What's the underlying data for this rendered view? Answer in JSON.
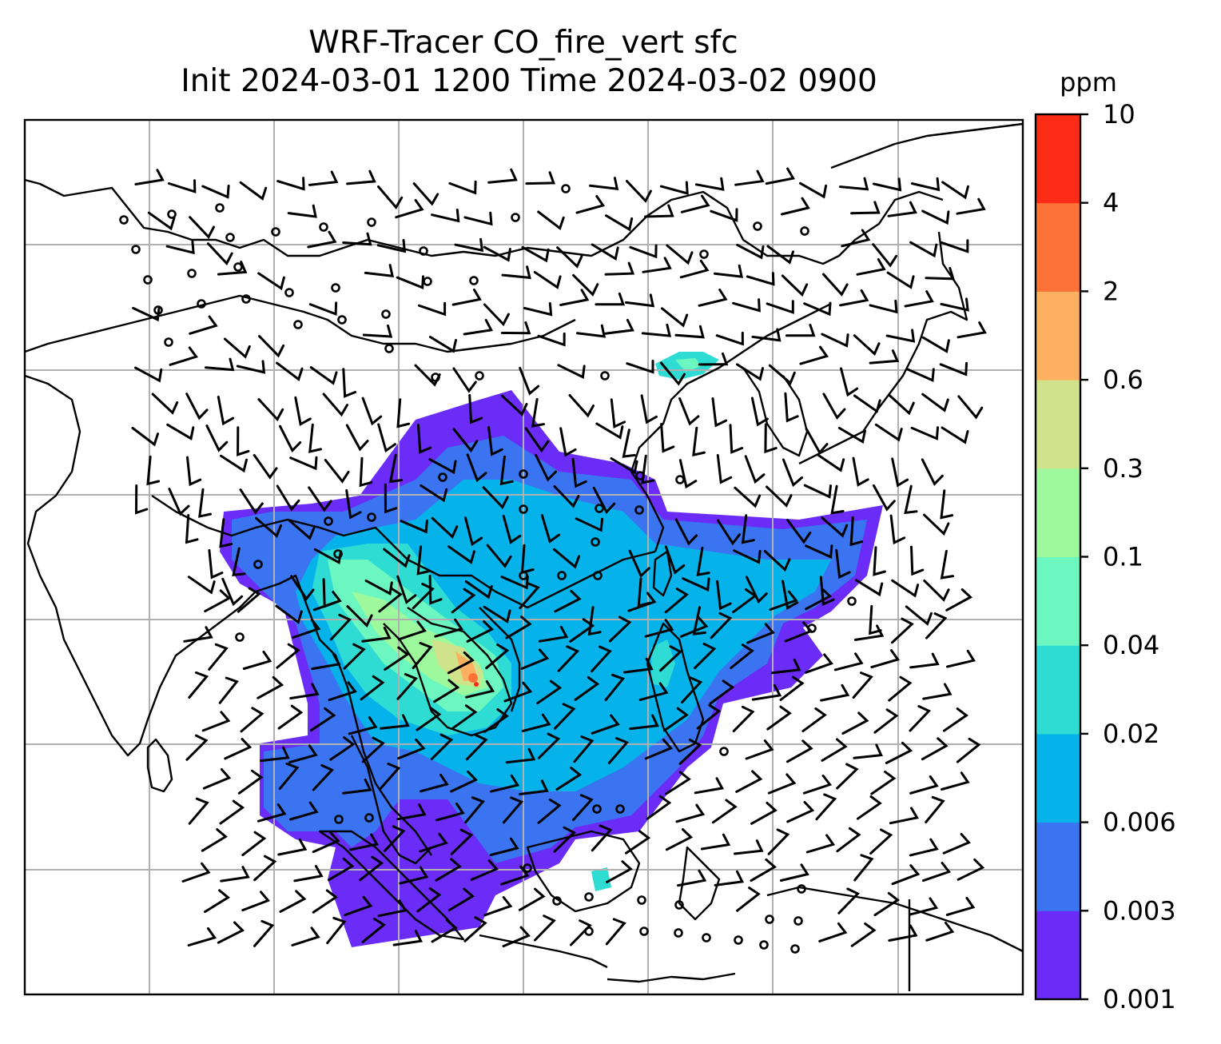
{
  "figure": {
    "title_line1": "WRF-Tracer CO_fire_vert sfc",
    "title_line2": "Init 2024-03-01 1200 Time 2024-03-02 0900"
  },
  "colorbar": {
    "unit_label": "ppm",
    "levels": [
      "0.001",
      "0.003",
      "0.006",
      "0.02",
      "0.04",
      "0.1",
      "0.3",
      "0.6",
      "2",
      "4",
      "10"
    ],
    "colors": [
      "#6a2cf6",
      "#3a74f0",
      "#06b2ea",
      "#2fdcd3",
      "#6cf7c0",
      "#9ef89c",
      "#d0e28a",
      "#fdb060",
      "#fd7337",
      "#fd2c16"
    ]
  },
  "chart_data": {
    "type": "heatmap",
    "variable": "CO_fire_vert sfc",
    "unit": "ppm",
    "contour_levels": [
      0.001,
      0.003,
      0.006,
      0.02,
      0.04,
      0.1,
      0.3,
      0.6,
      2,
      4,
      10
    ],
    "overlay": "wind barbs and calm-wind circles",
    "map_features": [
      "coastlines",
      "country borders",
      "lat-lon gridlines"
    ]
  }
}
